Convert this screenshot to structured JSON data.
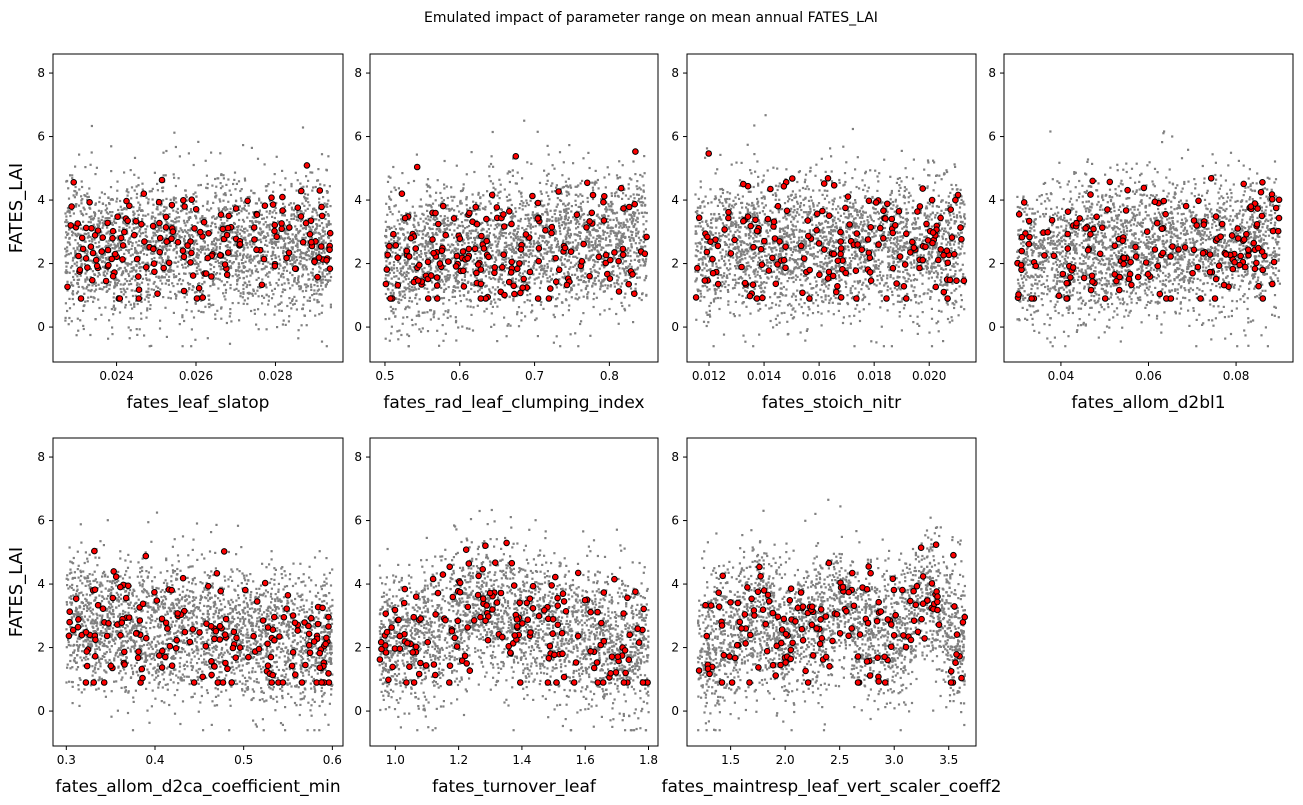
{
  "figure": {
    "suptitle": "Emulated impact of parameter range on mean annual FATES_LAI",
    "grey_color": "#808080",
    "red_color": "#ff0000",
    "edge_color": "#000000"
  },
  "chart_data": [
    {
      "type": "scatter",
      "xlabel": "fates_leaf_slatop",
      "ylabel": "FATES_LAI",
      "xlim": [
        0.0224,
        0.0297
      ],
      "ylim": [
        -1.1,
        8.6
      ],
      "xticks": [
        0.024,
        0.026,
        0.028
      ],
      "xticklabels": [
        "0.024",
        "0.026",
        "0.028"
      ],
      "yticks": [
        0,
        2,
        4,
        6,
        8
      ],
      "yticklabels": [
        "0",
        "2",
        "4",
        "6",
        "8"
      ],
      "grey_profile": [
        [
          0.0227,
          2.5
        ],
        [
          0.0294,
          2.5
        ]
      ]
    },
    {
      "type": "scatter",
      "xlabel": "fates_rad_leaf_clumping_index",
      "ylabel": "",
      "xlim": [
        0.48,
        0.865
      ],
      "ylim": [
        -1.1,
        8.6
      ],
      "xticks": [
        0.5,
        0.6,
        0.7,
        0.8
      ],
      "xticklabels": [
        "0.5",
        "0.6",
        "0.7",
        "0.8"
      ],
      "yticks": [
        0,
        2,
        4,
        6,
        8
      ],
      "yticklabels": [
        "0",
        "2",
        "4",
        "6",
        "8"
      ],
      "grey_profile": [
        [
          0.5,
          2.1
        ],
        [
          0.6,
          2.4
        ],
        [
          0.7,
          2.6
        ],
        [
          0.8,
          2.8
        ],
        [
          0.85,
          2.9
        ]
      ]
    },
    {
      "type": "scatter",
      "xlabel": "fates_stoich_nitr",
      "ylabel": "",
      "xlim": [
        0.0112,
        0.0217
      ],
      "ylim": [
        -1.1,
        8.6
      ],
      "xticks": [
        0.012,
        0.014,
        0.016,
        0.018,
        0.02
      ],
      "xticklabels": [
        "0.012",
        "0.014",
        "0.016",
        "0.018",
        "0.020"
      ],
      "yticks": [
        0,
        2,
        4,
        6,
        8
      ],
      "yticklabels": [
        "0",
        "2",
        "4",
        "6",
        "8"
      ],
      "grey_profile": [
        [
          0.0115,
          2.5
        ],
        [
          0.0213,
          2.5
        ]
      ]
    },
    {
      "type": "scatter",
      "xlabel": "fates_allom_d2bl1",
      "ylabel": "",
      "xlim": [
        0.027,
        0.093
      ],
      "ylim": [
        -1.1,
        8.6
      ],
      "xticks": [
        0.04,
        0.06,
        0.08
      ],
      "xticklabels": [
        "0.04",
        "0.06",
        "0.08"
      ],
      "yticks": [
        0,
        2,
        4,
        6,
        8
      ],
      "yticklabels": [
        "0",
        "2",
        "4",
        "6",
        "8"
      ],
      "grey_profile": [
        [
          0.03,
          2.3
        ],
        [
          0.09,
          2.7
        ]
      ]
    },
    {
      "type": "scatter",
      "xlabel": "fates_allom_d2ca_coefficient_min",
      "ylabel": "FATES_LAI",
      "xlim": [
        0.285,
        0.612
      ],
      "ylim": [
        -1.1,
        8.6
      ],
      "xticks": [
        0.3,
        0.4,
        0.5,
        0.6
      ],
      "xticklabels": [
        "0.3",
        "0.4",
        "0.5",
        "0.6"
      ],
      "yticks": [
        0,
        2,
        4,
        6,
        8
      ],
      "yticklabels": [
        "0",
        "2",
        "4",
        "6",
        "8"
      ],
      "grey_profile": [
        [
          0.3,
          2.8
        ],
        [
          0.6,
          2.2
        ]
      ]
    },
    {
      "type": "scatter",
      "xlabel": "fates_turnover_leaf",
      "ylabel": "",
      "xlim": [
        0.92,
        1.83
      ],
      "ylim": [
        -1.1,
        8.6
      ],
      "xticks": [
        1.0,
        1.2,
        1.4,
        1.6,
        1.8
      ],
      "xticklabels": [
        "1.0",
        "1.2",
        "1.4",
        "1.6",
        "1.8"
      ],
      "yticks": [
        0,
        2,
        4,
        6,
        8
      ],
      "yticklabels": [
        "0",
        "2",
        "4",
        "6",
        "8"
      ],
      "grey_profile": [
        [
          0.95,
          2.2
        ],
        [
          1.1,
          2.4
        ],
        [
          1.25,
          3.3
        ],
        [
          1.35,
          3.0
        ],
        [
          1.5,
          2.6
        ],
        [
          1.6,
          2.4
        ],
        [
          1.8,
          2.0
        ]
      ]
    },
    {
      "type": "scatter",
      "xlabel": "fates_maintresp_leaf_vert_scaler_coeff2",
      "ylabel": "",
      "xlim": [
        1.1,
        3.75
      ],
      "ylim": [
        -1.1,
        8.6
      ],
      "xticks": [
        1.5,
        2.0,
        2.5,
        3.0,
        3.5
      ],
      "xticklabels": [
        "1.5",
        "2.0",
        "2.5",
        "3.0",
        "3.5"
      ],
      "yticks": [
        0,
        2,
        4,
        6,
        8
      ],
      "yticklabels": [
        "0",
        "2",
        "4",
        "6",
        "8"
      ],
      "grey_profile": [
        [
          1.2,
          1.8
        ],
        [
          1.5,
          2.3
        ],
        [
          1.8,
          3.3
        ],
        [
          2.0,
          2.3
        ],
        [
          2.2,
          2.6
        ],
        [
          2.5,
          3.5
        ],
        [
          2.7,
          2.4
        ],
        [
          2.9,
          2.5
        ],
        [
          3.0,
          2.2
        ],
        [
          3.3,
          3.8
        ],
        [
          3.5,
          2.4
        ],
        [
          3.65,
          2.2
        ]
      ]
    }
  ]
}
